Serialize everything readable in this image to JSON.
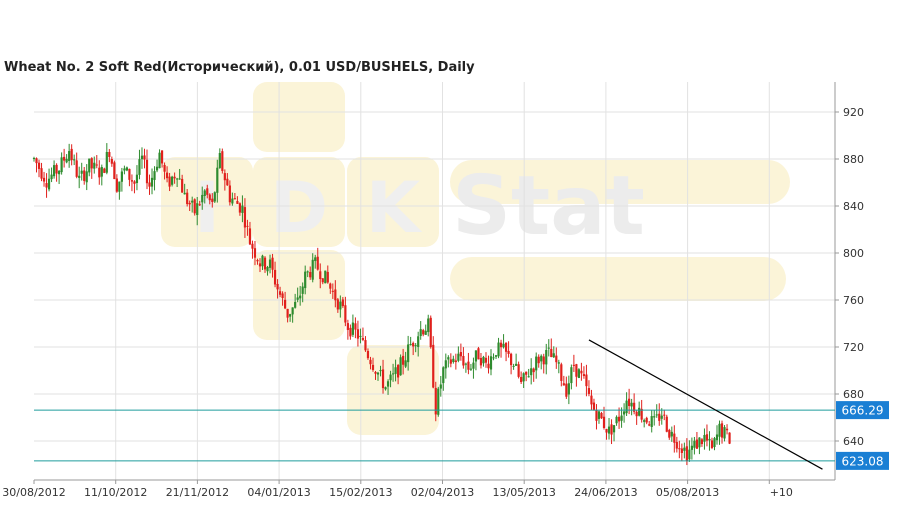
{
  "title": "Wheat  No. 2 Soft Red(Исторический), 0.01 USD/BUSHELS, Daily",
  "watermark": {
    "letters": [
      "I",
      "D",
      "K"
    ],
    "word": "Stat"
  },
  "colors": {
    "up": "#2e8b2e",
    "down": "#e0201c",
    "level_line": "#1f9c9c",
    "level_label_bg": "#1a7fd4",
    "trend_line": "#000000",
    "grid": "#e2e2e2",
    "watermark": "#fbf4d8"
  },
  "chart_data": {
    "type": "candlestick",
    "title": "Wheat  No. 2 Soft Red(Исторический), 0.01 USD/BUSHELS, Daily",
    "y_ticks": [
      920,
      880,
      840,
      800,
      760,
      720,
      680,
      640
    ],
    "ylim": [
      610,
      935
    ],
    "x_ticks": [
      "30/08/2012",
      "11/10/2012",
      "21/11/2012",
      "04/01/2013",
      "15/02/2013",
      "02/04/2013",
      "13/05/2013",
      "24/06/2013",
      "05/08/2013",
      "+10"
    ],
    "grid": true,
    "close_anchors": [
      [
        0,
        880
      ],
      [
        5,
        862
      ],
      [
        10,
        872
      ],
      [
        14,
        888
      ],
      [
        18,
        862
      ],
      [
        22,
        874
      ],
      [
        27,
        868
      ],
      [
        30,
        888
      ],
      [
        33,
        858
      ],
      [
        36,
        870
      ],
      [
        40,
        860
      ],
      [
        43,
        880
      ],
      [
        46,
        858
      ],
      [
        50,
        885
      ],
      [
        53,
        858
      ],
      [
        57,
        870
      ],
      [
        60,
        848
      ],
      [
        64,
        835
      ],
      [
        68,
        852
      ],
      [
        71,
        840
      ],
      [
        74,
        880
      ],
      [
        78,
        848
      ],
      [
        83,
        838
      ],
      [
        86,
        810
      ],
      [
        90,
        792
      ],
      [
        94,
        790
      ],
      [
        97,
        770
      ],
      [
        101,
        748
      ],
      [
        105,
        758
      ],
      [
        108,
        780
      ],
      [
        112,
        790
      ],
      [
        115,
        782
      ],
      [
        118,
        770
      ],
      [
        122,
        755
      ],
      [
        125,
        738
      ],
      [
        129,
        730
      ],
      [
        132,
        718
      ],
      [
        136,
        702
      ],
      [
        140,
        686
      ],
      [
        143,
        694
      ],
      [
        147,
        708
      ],
      [
        150,
        722
      ],
      [
        154,
        735
      ],
      [
        157,
        738
      ],
      [
        160,
        668
      ],
      [
        163,
        700
      ],
      [
        166,
        708
      ],
      [
        170,
        712
      ],
      [
        173,
        702
      ],
      [
        177,
        714
      ],
      [
        180,
        705
      ],
      [
        184,
        718
      ],
      [
        187,
        716
      ],
      [
        191,
        706
      ],
      [
        194,
        688
      ],
      [
        198,
        702
      ],
      [
        201,
        710
      ],
      [
        205,
        714
      ],
      [
        208,
        706
      ],
      [
        212,
        684
      ],
      [
        215,
        705
      ],
      [
        219,
        690
      ],
      [
        222,
        670
      ],
      [
        226,
        658
      ],
      [
        229,
        648
      ],
      [
        233,
        660
      ],
      [
        236,
        676
      ],
      [
        240,
        668
      ],
      [
        243,
        660
      ],
      [
        247,
        655
      ],
      [
        250,
        664
      ],
      [
        253,
        648
      ],
      [
        257,
        638
      ],
      [
        260,
        630
      ],
      [
        264,
        638
      ],
      [
        267,
        643
      ],
      [
        270,
        632
      ],
      [
        273,
        650
      ],
      [
        277,
        642
      ]
    ],
    "support_levels": [
      {
        "label": "666.29",
        "value": 666.29
      },
      {
        "label": "623.08",
        "value": 623.08
      }
    ],
    "trend_line": {
      "from": [
        221,
        726
      ],
      "to": [
        314,
        616
      ]
    },
    "plot_x_range": [
      0,
      317
    ],
    "last_bar_index": 277
  }
}
